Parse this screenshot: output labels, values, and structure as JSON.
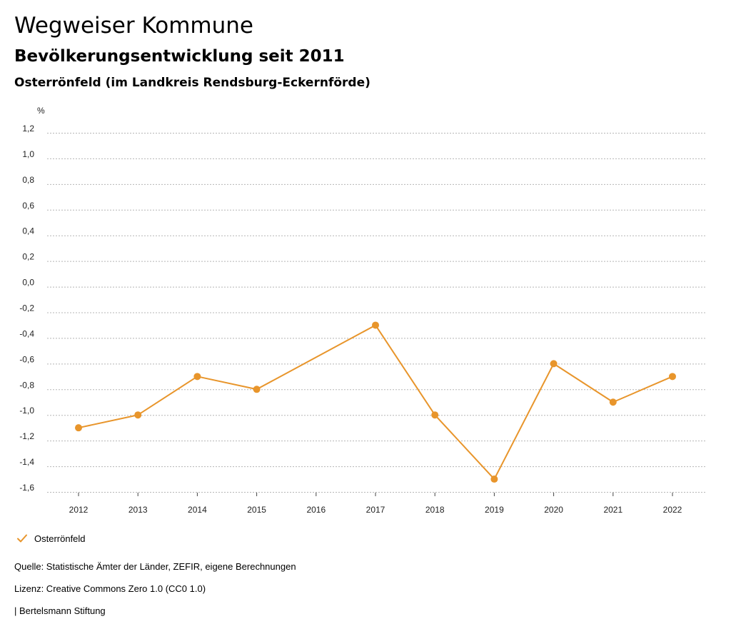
{
  "header": {
    "title": "Wegweiser Kommune",
    "subtitle": "Bevölkerungsentwicklung seit 2011",
    "region": "Osterrönfeld (im Landkreis Rendsburg-Eckernförde)"
  },
  "chart_data": {
    "type": "line",
    "ylabel": "%",
    "xlabel": "",
    "ylim": [
      -1.6,
      1.2
    ],
    "y_ticks": [
      "1,2",
      "1,0",
      "0,8",
      "0,6",
      "0,4",
      "0,2",
      "0,0",
      "-0,2",
      "-0,4",
      "-0,6",
      "-0,8",
      "-1,0",
      "-1,2",
      "-1,4",
      "-1,6"
    ],
    "y_tick_values": [
      1.2,
      1.0,
      0.8,
      0.6,
      0.4,
      0.2,
      0.0,
      -0.2,
      -0.4,
      -0.6,
      -0.8,
      -1.0,
      -1.2,
      -1.4,
      -1.6
    ],
    "categories": [
      "2012",
      "2013",
      "2014",
      "2015",
      "2016",
      "2017",
      "2018",
      "2019",
      "2020",
      "2021",
      "2022"
    ],
    "grid": true,
    "legend_position": "bottom-left",
    "series": [
      {
        "name": "Osterrönfeld",
        "color": "#e8952b",
        "points": [
          {
            "x": "2012",
            "y": -1.1
          },
          {
            "x": "2013",
            "y": -1.0
          },
          {
            "x": "2014",
            "y": -0.7
          },
          {
            "x": "2015",
            "y": -0.8
          },
          {
            "x": "2017",
            "y": -0.3
          },
          {
            "x": "2018",
            "y": -1.0
          },
          {
            "x": "2019",
            "y": -1.5
          },
          {
            "x": "2020",
            "y": -0.6
          },
          {
            "x": "2021",
            "y": -0.9
          },
          {
            "x": "2022",
            "y": -0.7
          }
        ]
      }
    ]
  },
  "legend": {
    "label": "Osterrönfeld",
    "icon": "check-icon",
    "color": "#e8952b"
  },
  "footer": {
    "source": "Quelle: Statistische Ämter der Länder, ZEFIR, eigene Berechnungen",
    "license": "Lizenz: Creative Commons Zero 1.0 (CC0 1.0)",
    "publisher": "| Bertelsmann Stiftung"
  }
}
